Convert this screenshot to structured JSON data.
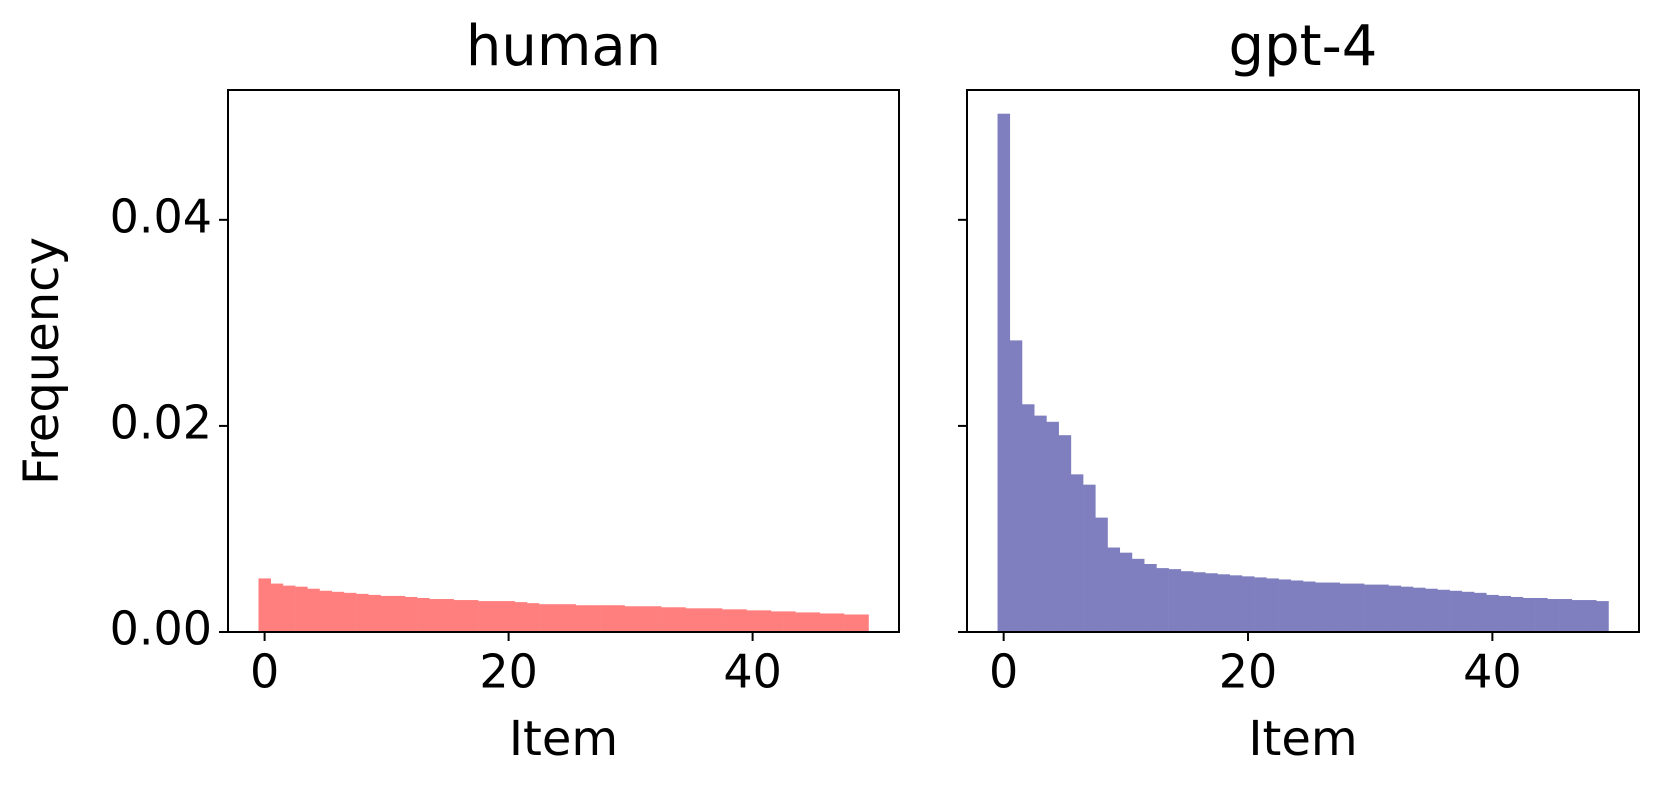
{
  "chart_data": [
    {
      "type": "bar",
      "title": "human",
      "x_label": "Item",
      "y_label": "Frequency",
      "color": "#ff7f7f",
      "x": [
        0,
        1,
        2,
        3,
        4,
        5,
        6,
        7,
        8,
        9,
        10,
        11,
        12,
        13,
        14,
        15,
        16,
        17,
        18,
        19,
        20,
        21,
        22,
        23,
        24,
        25,
        26,
        27,
        28,
        29,
        30,
        31,
        32,
        33,
        34,
        35,
        36,
        37,
        38,
        39,
        40,
        41,
        42,
        43,
        44,
        45,
        46,
        47,
        48,
        49
      ],
      "values": [
        0.0052,
        0.0047,
        0.0045,
        0.0044,
        0.0042,
        0.004,
        0.0039,
        0.0038,
        0.0037,
        0.0036,
        0.0035,
        0.0035,
        0.0034,
        0.0033,
        0.0032,
        0.0032,
        0.0031,
        0.0031,
        0.003,
        0.003,
        0.003,
        0.0029,
        0.0028,
        0.0027,
        0.0027,
        0.0027,
        0.0026,
        0.0026,
        0.0026,
        0.0026,
        0.0025,
        0.0025,
        0.0025,
        0.0024,
        0.0024,
        0.0023,
        0.0023,
        0.0023,
        0.0022,
        0.0022,
        0.0021,
        0.0021,
        0.002,
        0.002,
        0.0019,
        0.0019,
        0.0018,
        0.0018,
        0.0017,
        0.0017
      ],
      "xlim": [
        -3,
        52
      ],
      "xticks": [
        0,
        20,
        40
      ],
      "ylim": [
        0,
        0.0526
      ],
      "yticks": [
        {
          "value": 0,
          "label": "0.00"
        },
        {
          "value": 0.02,
          "label": "0.02"
        },
        {
          "value": 0.04,
          "label": "0.04"
        }
      ]
    },
    {
      "type": "bar",
      "title": "gpt-4",
      "x_label": "Item",
      "color": "#7f7fbf",
      "x": [
        0,
        1,
        2,
        3,
        4,
        5,
        6,
        7,
        8,
        9,
        10,
        11,
        12,
        13,
        14,
        15,
        16,
        17,
        18,
        19,
        20,
        21,
        22,
        23,
        24,
        25,
        26,
        27,
        28,
        29,
        30,
        31,
        32,
        33,
        34,
        35,
        36,
        37,
        38,
        39,
        40,
        41,
        42,
        43,
        44,
        45,
        46,
        47,
        48,
        49
      ],
      "values": [
        0.0503,
        0.0283,
        0.0221,
        0.021,
        0.0204,
        0.0191,
        0.0153,
        0.0143,
        0.0111,
        0.0082,
        0.0077,
        0.0071,
        0.0066,
        0.0062,
        0.0061,
        0.0059,
        0.0058,
        0.0057,
        0.0056,
        0.0055,
        0.0054,
        0.0053,
        0.0052,
        0.0051,
        0.005,
        0.0049,
        0.0048,
        0.0048,
        0.0047,
        0.0047,
        0.0046,
        0.0046,
        0.0045,
        0.0044,
        0.0043,
        0.0042,
        0.0041,
        0.004,
        0.0039,
        0.0038,
        0.0036,
        0.0035,
        0.0034,
        0.0033,
        0.0033,
        0.0032,
        0.0032,
        0.0031,
        0.0031,
        0.003
      ],
      "xlim": [
        -3,
        52
      ],
      "xticks": [
        0,
        20,
        40
      ],
      "ylim": [
        0,
        0.0526
      ],
      "yticks": [
        0,
        0.02,
        0.04
      ]
    }
  ]
}
